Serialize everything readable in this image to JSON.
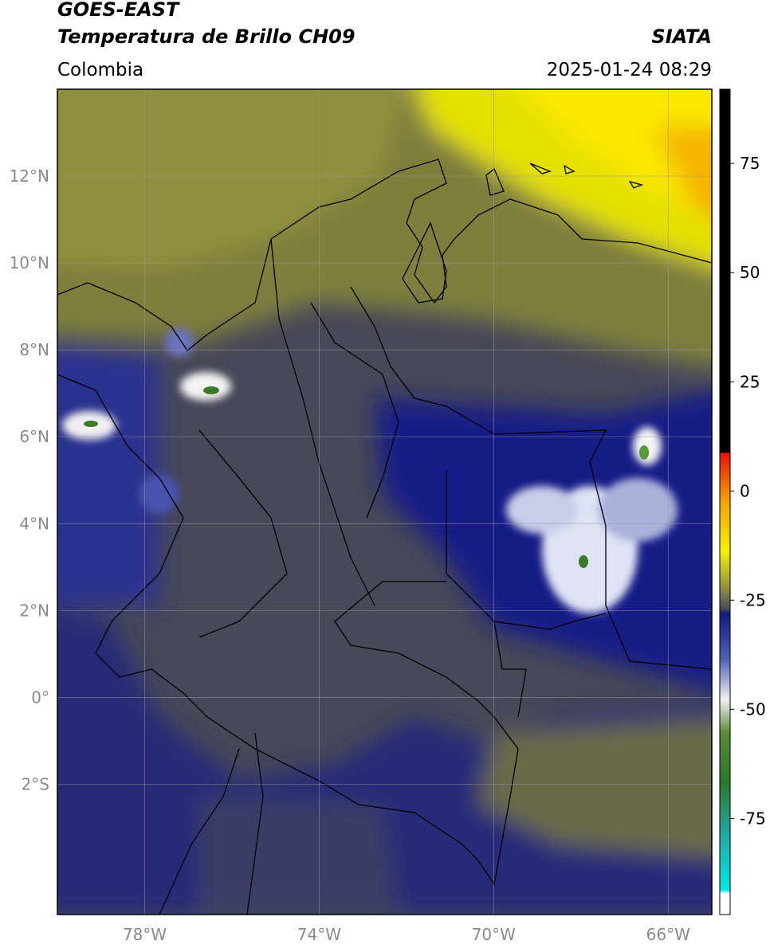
{
  "header": {
    "title_lines": [
      "GOES-EAST",
      "Temperatura de Brillo CH09"
    ],
    "source": "SIATA",
    "region": "Colombia",
    "datetime": "2025-01-24 08:29"
  },
  "map": {
    "xlim": [
      -80,
      -65
    ],
    "ylim": [
      -5,
      14
    ],
    "xticks": [
      {
        "value": -78,
        "label": "78°W"
      },
      {
        "value": -74,
        "label": "74°W"
      },
      {
        "value": -70,
        "label": "70°W"
      },
      {
        "value": -66,
        "label": "66°W"
      }
    ],
    "yticks": [
      {
        "value": 12,
        "label": "12°N"
      },
      {
        "value": 10,
        "label": "10°N"
      },
      {
        "value": 8,
        "label": "8°N"
      },
      {
        "value": 6,
        "label": "6°N"
      },
      {
        "value": 4,
        "label": "4°N"
      },
      {
        "value": 2,
        "label": "2°N"
      },
      {
        "value": 0,
        "label": "0°"
      },
      {
        "value": -2,
        "label": "2°S"
      }
    ],
    "grid": true
  },
  "colorbar": {
    "lim": [
      -97,
      92
    ],
    "ticks": [
      75,
      50,
      25,
      0,
      -25,
      -50,
      -75
    ]
  }
}
